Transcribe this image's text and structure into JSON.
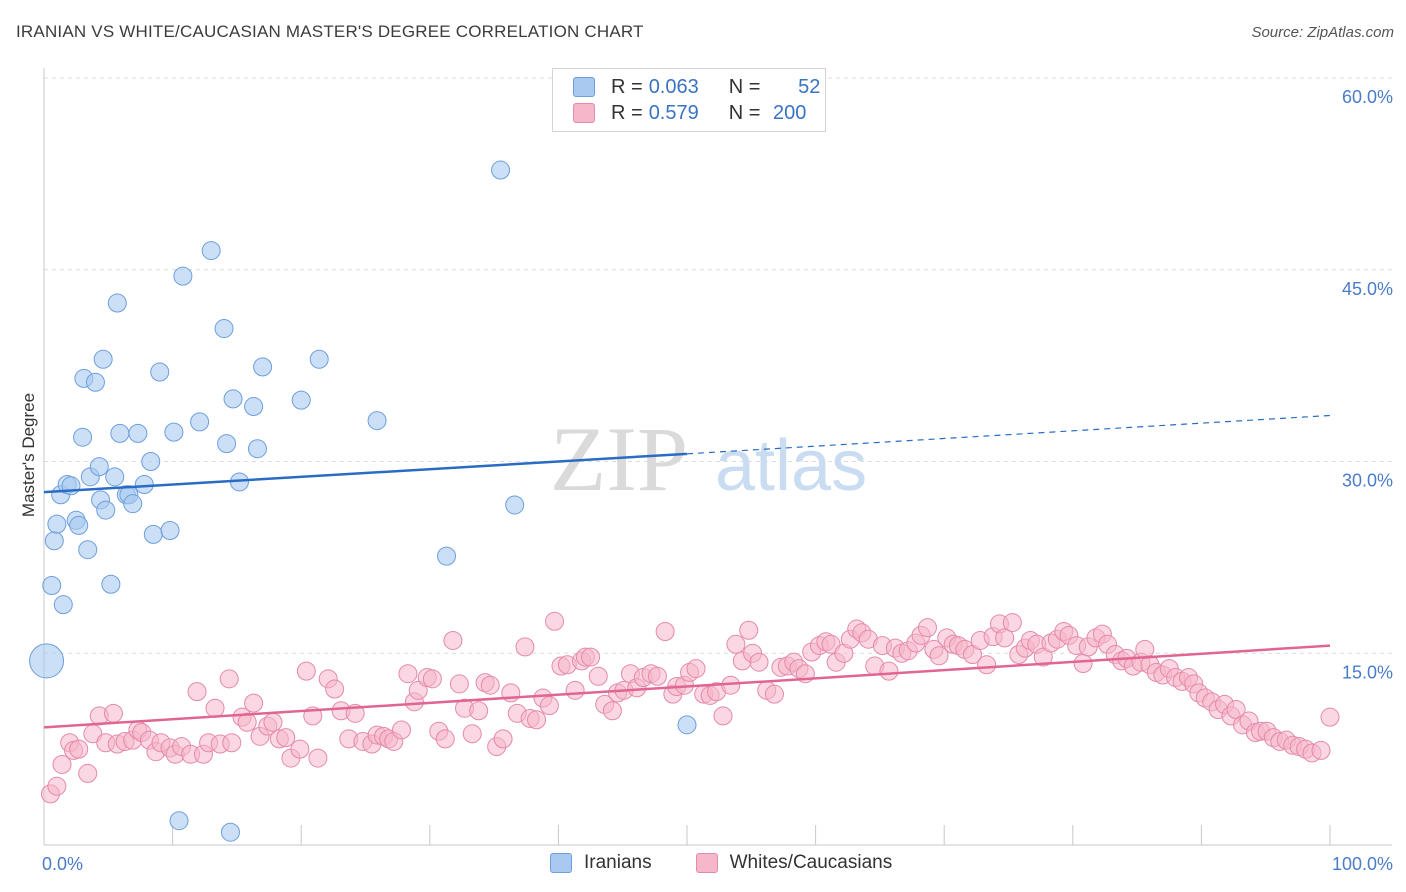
{
  "header": {
    "title": "IRANIAN VS WHITE/CAUCASIAN MASTER'S DEGREE CORRELATION CHART",
    "source": "Source: ZipAtlas.com"
  },
  "legend": {
    "rows": [
      {
        "r_label": "R =",
        "r_value": "0.063",
        "n_label": "N =",
        "n_value": "52",
        "color": "#a9c9f0"
      },
      {
        "r_label": "R =",
        "r_value": "0.579",
        "n_label": "N =",
        "n_value": "200",
        "color": "#f6b7ca"
      }
    ],
    "series": [
      "Iranians",
      "Whites/Caucasians"
    ]
  },
  "watermark": {
    "zip": "ZIP",
    "atlas": "atlas"
  },
  "colors": {
    "blue_fill": "#a9c9f0",
    "blue_stroke": "#6e9fdc",
    "blue_line": "#2a6cc4",
    "pink_fill": "#f6b7ca",
    "pink_stroke": "#e58aa8",
    "pink_line": "#e06592",
    "axis_label": "#4a7cc9"
  },
  "chart_data": {
    "type": "scatter",
    "ylabel": "Master's Degree",
    "xlim": [
      0,
      100
    ],
    "ylim": [
      0,
      60
    ],
    "y_ticks": [
      "15.0%",
      "30.0%",
      "45.0%",
      "60.0%"
    ],
    "x_ticks": [
      "0.0%",
      "100.0%"
    ],
    "grid": true,
    "series": [
      {
        "name": "Iranians",
        "r": 0.063,
        "n": 52,
        "trend": {
          "x0": 0,
          "y0": 27.6,
          "x1": 50,
          "y1": 30.6,
          "dashed_to_x": 100,
          "dashed_to_y": 33.6
        },
        "points": [
          [
            0.2,
            14.4
          ],
          [
            0.6,
            20.3
          ],
          [
            0.8,
            23.8
          ],
          [
            1.0,
            25.1
          ],
          [
            1.3,
            27.4
          ],
          [
            1.5,
            18.8
          ],
          [
            1.8,
            28.2
          ],
          [
            2.1,
            28.1
          ],
          [
            2.5,
            25.4
          ],
          [
            2.7,
            25.0
          ],
          [
            3.0,
            31.9
          ],
          [
            3.1,
            36.5
          ],
          [
            3.4,
            23.1
          ],
          [
            3.6,
            28.8
          ],
          [
            4.0,
            36.2
          ],
          [
            4.3,
            29.6
          ],
          [
            4.4,
            27.0
          ],
          [
            4.6,
            38.0
          ],
          [
            4.8,
            26.2
          ],
          [
            5.2,
            20.4
          ],
          [
            5.5,
            28.8
          ],
          [
            5.7,
            42.4
          ],
          [
            5.9,
            32.2
          ],
          [
            6.4,
            27.4
          ],
          [
            6.6,
            27.4
          ],
          [
            6.9,
            26.7
          ],
          [
            7.3,
            32.2
          ],
          [
            7.8,
            28.2
          ],
          [
            8.3,
            30.0
          ],
          [
            8.5,
            24.3
          ],
          [
            9.0,
            37.0
          ],
          [
            9.8,
            24.6
          ],
          [
            10.1,
            32.3
          ],
          [
            10.5,
            1.9
          ],
          [
            10.8,
            44.5
          ],
          [
            12.1,
            33.1
          ],
          [
            13.0,
            46.5
          ],
          [
            14.0,
            40.4
          ],
          [
            14.2,
            31.4
          ],
          [
            14.5,
            1.0
          ],
          [
            14.7,
            34.9
          ],
          [
            15.2,
            28.4
          ],
          [
            16.3,
            34.3
          ],
          [
            16.6,
            31.0
          ],
          [
            17.0,
            37.4
          ],
          [
            20.0,
            34.8
          ],
          [
            21.4,
            38.0
          ],
          [
            25.9,
            33.2
          ],
          [
            31.3,
            22.6
          ],
          [
            35.5,
            52.8
          ],
          [
            36.6,
            26.6
          ],
          [
            50.0,
            9.4
          ]
        ]
      },
      {
        "name": "Whites/Caucasians",
        "r": 0.579,
        "n": 200,
        "trend": {
          "x0": 0,
          "y0": 9.2,
          "x1": 100,
          "y1": 15.6
        },
        "points": [
          [
            0.5,
            4.0
          ],
          [
            1.0,
            4.6
          ],
          [
            1.4,
            6.3
          ],
          [
            2.0,
            8.0
          ],
          [
            2.3,
            7.4
          ],
          [
            2.7,
            7.5
          ],
          [
            3.4,
            5.6
          ],
          [
            3.8,
            8.7
          ],
          [
            4.3,
            10.1
          ],
          [
            4.8,
            8.0
          ],
          [
            5.4,
            10.3
          ],
          [
            5.7,
            7.9
          ],
          [
            6.3,
            8.1
          ],
          [
            6.9,
            8.2
          ],
          [
            7.3,
            9.0
          ],
          [
            7.6,
            8.8
          ],
          [
            8.2,
            8.2
          ],
          [
            8.7,
            7.3
          ],
          [
            9.1,
            8.0
          ],
          [
            9.8,
            7.6
          ],
          [
            10.2,
            7.1
          ],
          [
            10.7,
            7.7
          ],
          [
            11.4,
            7.1
          ],
          [
            11.9,
            12.0
          ],
          [
            12.4,
            7.1
          ],
          [
            12.8,
            8.0
          ],
          [
            13.3,
            10.7
          ],
          [
            13.7,
            7.9
          ],
          [
            14.4,
            13.0
          ],
          [
            14.6,
            8.0
          ],
          [
            15.4,
            10.0
          ],
          [
            15.8,
            9.6
          ],
          [
            16.3,
            11.1
          ],
          [
            16.8,
            8.5
          ],
          [
            17.4,
            9.3
          ],
          [
            17.8,
            9.6
          ],
          [
            18.3,
            8.3
          ],
          [
            18.8,
            8.4
          ],
          [
            19.2,
            6.8
          ],
          [
            19.9,
            7.5
          ],
          [
            20.4,
            13.6
          ],
          [
            20.9,
            10.1
          ],
          [
            21.3,
            6.8
          ],
          [
            22.1,
            13.0
          ],
          [
            22.6,
            12.2
          ],
          [
            23.1,
            10.5
          ],
          [
            23.7,
            8.3
          ],
          [
            24.2,
            10.3
          ],
          [
            24.8,
            8.1
          ],
          [
            25.5,
            7.9
          ],
          [
            25.9,
            8.6
          ],
          [
            26.4,
            8.5
          ],
          [
            26.8,
            8.3
          ],
          [
            27.2,
            8.1
          ],
          [
            27.8,
            9.0
          ],
          [
            28.3,
            13.4
          ],
          [
            28.8,
            11.2
          ],
          [
            29.1,
            12.1
          ],
          [
            29.8,
            13.1
          ],
          [
            30.2,
            13.0
          ],
          [
            30.7,
            8.9
          ],
          [
            31.2,
            8.3
          ],
          [
            31.8,
            16.0
          ],
          [
            32.3,
            12.6
          ],
          [
            32.7,
            10.7
          ],
          [
            33.3,
            8.7
          ],
          [
            33.8,
            10.5
          ],
          [
            34.3,
            12.7
          ],
          [
            34.7,
            12.5
          ],
          [
            35.2,
            7.7
          ],
          [
            35.7,
            8.3
          ],
          [
            36.3,
            11.9
          ],
          [
            36.8,
            10.3
          ],
          [
            37.4,
            15.5
          ],
          [
            37.8,
            9.9
          ],
          [
            38.3,
            9.8
          ],
          [
            38.8,
            11.5
          ],
          [
            39.3,
            10.9
          ],
          [
            39.7,
            17.5
          ],
          [
            40.2,
            14.0
          ],
          [
            40.7,
            14.1
          ],
          [
            41.3,
            12.1
          ],
          [
            41.8,
            14.4
          ],
          [
            42.1,
            14.7
          ],
          [
            42.5,
            14.7
          ],
          [
            43.1,
            13.2
          ],
          [
            43.6,
            11.0
          ],
          [
            44.2,
            10.5
          ],
          [
            44.6,
            11.9
          ],
          [
            45.1,
            12.1
          ],
          [
            45.6,
            13.4
          ],
          [
            46.1,
            12.3
          ],
          [
            46.6,
            13.1
          ],
          [
            47.2,
            13.4
          ],
          [
            47.7,
            13.2
          ],
          [
            48.3,
            16.7
          ],
          [
            48.9,
            11.8
          ],
          [
            49.2,
            12.4
          ],
          [
            49.8,
            12.5
          ],
          [
            50.2,
            13.5
          ],
          [
            50.7,
            13.8
          ],
          [
            51.3,
            11.8
          ],
          [
            51.8,
            11.7
          ],
          [
            52.3,
            12.0
          ],
          [
            52.8,
            10.1
          ],
          [
            53.4,
            12.5
          ],
          [
            53.8,
            15.7
          ],
          [
            54.3,
            14.4
          ],
          [
            54.8,
            16.8
          ],
          [
            55.1,
            15.0
          ],
          [
            55.6,
            14.3
          ],
          [
            56.2,
            12.1
          ],
          [
            56.8,
            11.8
          ],
          [
            57.3,
            13.9
          ],
          [
            57.8,
            14.0
          ],
          [
            58.3,
            14.3
          ],
          [
            58.7,
            13.8
          ],
          [
            59.2,
            13.4
          ],
          [
            59.7,
            15.1
          ],
          [
            60.3,
            15.6
          ],
          [
            60.8,
            15.9
          ],
          [
            61.2,
            15.7
          ],
          [
            61.6,
            14.3
          ],
          [
            62.2,
            15.0
          ],
          [
            62.7,
            16.1
          ],
          [
            63.2,
            16.9
          ],
          [
            63.6,
            16.6
          ],
          [
            64.1,
            16.1
          ],
          [
            64.6,
            14.0
          ],
          [
            65.2,
            15.6
          ],
          [
            65.7,
            13.6
          ],
          [
            66.2,
            15.4
          ],
          [
            66.7,
            15.0
          ],
          [
            67.2,
            15.2
          ],
          [
            67.8,
            15.8
          ],
          [
            68.2,
            16.4
          ],
          [
            68.7,
            17.0
          ],
          [
            69.2,
            15.3
          ],
          [
            69.6,
            14.8
          ],
          [
            70.2,
            16.2
          ],
          [
            70.7,
            15.7
          ],
          [
            71.1,
            15.6
          ],
          [
            71.6,
            15.3
          ],
          [
            72.2,
            14.9
          ],
          [
            72.8,
            16.0
          ],
          [
            73.3,
            14.1
          ],
          [
            73.8,
            16.3
          ],
          [
            74.3,
            17.3
          ],
          [
            74.7,
            16.2
          ],
          [
            75.3,
            17.4
          ],
          [
            75.8,
            14.9
          ],
          [
            76.3,
            15.4
          ],
          [
            76.7,
            16.0
          ],
          [
            77.2,
            15.7
          ],
          [
            77.7,
            14.7
          ],
          [
            78.3,
            15.8
          ],
          [
            78.8,
            16.1
          ],
          [
            79.3,
            16.7
          ],
          [
            79.7,
            16.4
          ],
          [
            80.3,
            15.6
          ],
          [
            80.8,
            14.2
          ],
          [
            81.2,
            15.5
          ],
          [
            81.8,
            16.2
          ],
          [
            82.3,
            16.5
          ],
          [
            82.7,
            15.7
          ],
          [
            83.3,
            14.9
          ],
          [
            83.8,
            14.4
          ],
          [
            84.2,
            14.6
          ],
          [
            84.7,
            14.0
          ],
          [
            85.3,
            14.3
          ],
          [
            85.6,
            15.3
          ],
          [
            86.0,
            14.1
          ],
          [
            86.5,
            13.5
          ],
          [
            87.0,
            13.3
          ],
          [
            87.5,
            13.8
          ],
          [
            88.0,
            13.1
          ],
          [
            88.5,
            12.8
          ],
          [
            89.0,
            13.1
          ],
          [
            89.4,
            12.6
          ],
          [
            89.8,
            11.9
          ],
          [
            90.3,
            11.5
          ],
          [
            90.8,
            11.2
          ],
          [
            91.3,
            10.6
          ],
          [
            91.8,
            11.0
          ],
          [
            92.3,
            10.1
          ],
          [
            92.7,
            10.6
          ],
          [
            93.2,
            9.4
          ],
          [
            93.7,
            9.7
          ],
          [
            94.2,
            8.8
          ],
          [
            94.6,
            8.9
          ],
          [
            95.1,
            8.9
          ],
          [
            95.6,
            8.4
          ],
          [
            96.1,
            8.1
          ],
          [
            96.6,
            8.2
          ],
          [
            97.1,
            7.8
          ],
          [
            97.6,
            7.7
          ],
          [
            98.1,
            7.5
          ],
          [
            98.6,
            7.2
          ],
          [
            99.3,
            7.4
          ],
          [
            100.0,
            10.0
          ]
        ]
      }
    ]
  }
}
